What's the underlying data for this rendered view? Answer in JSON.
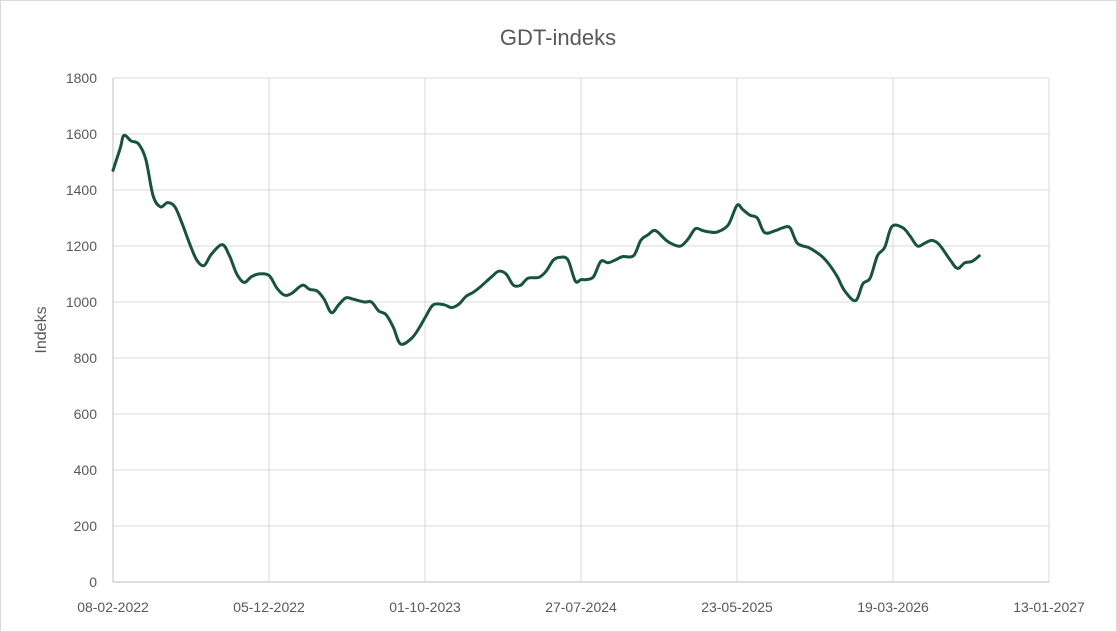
{
  "chart_data": {
    "type": "line",
    "title": "GDT-indeks",
    "xlabel": "",
    "ylabel": "Indeks",
    "ylim": [
      0,
      1800
    ],
    "yticks": [
      0,
      200,
      400,
      600,
      800,
      1000,
      1200,
      1400,
      1600,
      1800
    ],
    "xlim": [
      "2022-02-08",
      "2027-01-13"
    ],
    "xticks": [
      "08-02-2022",
      "05-12-2022",
      "01-10-2023",
      "27-07-2024",
      "23-05-2025",
      "19-03-2026",
      "13-01-2027"
    ],
    "grid": true,
    "legend": "none",
    "series": [
      {
        "color": "#17533f",
        "points": [
          [
            "2022-02-08",
            1470
          ],
          [
            "2022-02-22",
            1550
          ],
          [
            "2022-03-01",
            1595
          ],
          [
            "2022-03-15",
            1575
          ],
          [
            "2022-03-29",
            1565
          ],
          [
            "2022-04-12",
            1510
          ],
          [
            "2022-04-26",
            1380
          ],
          [
            "2022-05-10",
            1340
          ],
          [
            "2022-05-24",
            1355
          ],
          [
            "2022-06-07",
            1340
          ],
          [
            "2022-06-21",
            1280
          ],
          [
            "2022-07-05",
            1210
          ],
          [
            "2022-07-19",
            1150
          ],
          [
            "2022-08-02",
            1130
          ],
          [
            "2022-08-16",
            1170
          ],
          [
            "2022-09-06",
            1205
          ],
          [
            "2022-09-20",
            1165
          ],
          [
            "2022-10-04",
            1100
          ],
          [
            "2022-10-18",
            1070
          ],
          [
            "2022-11-01",
            1090
          ],
          [
            "2022-11-15",
            1100
          ],
          [
            "2022-12-05",
            1095
          ],
          [
            "2022-12-20",
            1050
          ],
          [
            "2023-01-03",
            1025
          ],
          [
            "2023-01-17",
            1030
          ],
          [
            "2023-02-07",
            1060
          ],
          [
            "2023-02-21",
            1045
          ],
          [
            "2023-03-07",
            1040
          ],
          [
            "2023-03-21",
            1010
          ],
          [
            "2023-04-04",
            962
          ],
          [
            "2023-04-18",
            990
          ],
          [
            "2023-05-02",
            1015
          ],
          [
            "2023-05-16",
            1010
          ],
          [
            "2023-06-06",
            1000
          ],
          [
            "2023-06-20",
            1000
          ],
          [
            "2023-07-04",
            968
          ],
          [
            "2023-07-18",
            955
          ],
          [
            "2023-08-01",
            910
          ],
          [
            "2023-08-15",
            850
          ],
          [
            "2023-09-05",
            870
          ],
          [
            "2023-09-19",
            905
          ],
          [
            "2023-10-03",
            950
          ],
          [
            "2023-10-17",
            990
          ],
          [
            "2023-11-07",
            990
          ],
          [
            "2023-11-21",
            980
          ],
          [
            "2023-12-05",
            992
          ],
          [
            "2023-12-19",
            1020
          ],
          [
            "2024-01-02",
            1035
          ],
          [
            "2024-01-16",
            1055
          ],
          [
            "2024-02-06",
            1090
          ],
          [
            "2024-02-20",
            1110
          ],
          [
            "2024-03-05",
            1100
          ],
          [
            "2024-03-19",
            1060
          ],
          [
            "2024-04-02",
            1060
          ],
          [
            "2024-04-16",
            1085
          ],
          [
            "2024-05-07",
            1088
          ],
          [
            "2024-05-21",
            1110
          ],
          [
            "2024-06-04",
            1150
          ],
          [
            "2024-06-18",
            1160
          ],
          [
            "2024-07-02",
            1150
          ],
          [
            "2024-07-16",
            1075
          ],
          [
            "2024-07-27",
            1080
          ],
          [
            "2024-08-06",
            1080
          ],
          [
            "2024-08-20",
            1090
          ],
          [
            "2024-09-03",
            1145
          ],
          [
            "2024-09-17",
            1140
          ],
          [
            "2024-10-01",
            1150
          ],
          [
            "2024-10-15",
            1162
          ],
          [
            "2024-11-05",
            1165
          ],
          [
            "2024-11-19",
            1220
          ],
          [
            "2024-12-03",
            1240
          ],
          [
            "2024-12-17",
            1255
          ],
          [
            "2025-01-07",
            1220
          ],
          [
            "2025-01-21",
            1205
          ],
          [
            "2025-02-04",
            1200
          ],
          [
            "2025-02-18",
            1225
          ],
          [
            "2025-03-04",
            1262
          ],
          [
            "2025-03-18",
            1255
          ],
          [
            "2025-04-01",
            1250
          ],
          [
            "2025-04-15",
            1250
          ],
          [
            "2025-05-06",
            1275
          ],
          [
            "2025-05-23",
            1345
          ],
          [
            "2025-06-03",
            1330
          ],
          [
            "2025-06-17",
            1310
          ],
          [
            "2025-07-01",
            1300
          ],
          [
            "2025-07-15",
            1248
          ],
          [
            "2025-08-05",
            1255
          ],
          [
            "2025-08-19",
            1265
          ],
          [
            "2025-09-02",
            1265
          ],
          [
            "2025-09-16",
            1210
          ],
          [
            "2025-10-07",
            1195
          ],
          [
            "2025-10-21",
            1180
          ],
          [
            "2025-11-04",
            1160
          ],
          [
            "2025-11-18",
            1130
          ],
          [
            "2025-12-02",
            1090
          ],
          [
            "2025-12-16",
            1040
          ],
          [
            "2026-01-06",
            1005
          ],
          [
            "2026-01-20",
            1065
          ],
          [
            "2026-02-03",
            1085
          ],
          [
            "2026-02-17",
            1165
          ],
          [
            "2026-03-03",
            1195
          ],
          [
            "2026-03-17",
            1270
          ],
          [
            "2026-04-07",
            1265
          ],
          [
            "2026-04-21",
            1235
          ],
          [
            "2026-05-05",
            1200
          ],
          [
            "2026-05-19",
            1210
          ],
          [
            "2026-06-02",
            1220
          ],
          [
            "2026-06-16",
            1205
          ],
          [
            "2026-07-07",
            1150
          ],
          [
            "2026-07-21",
            1120
          ],
          [
            "2026-08-04",
            1140
          ],
          [
            "2026-08-18",
            1145
          ],
          [
            "2026-09-01",
            1165
          ]
        ]
      }
    ]
  }
}
